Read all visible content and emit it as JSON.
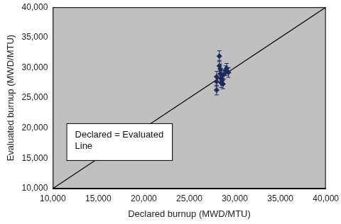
{
  "chart_data": {
    "type": "scatter",
    "x_label": "Declared burnup (MWD/MTU)",
    "y_label": "Evaluated burnup (MWD/MTU)",
    "annotation": "Declared = Evaluated Line",
    "xlim": [
      10000,
      40000
    ],
    "xticks": [
      {
        "value": 10000,
        "label": "10,000"
      },
      {
        "value": 15000,
        "label": "15,000"
      },
      {
        "value": 20000,
        "label": "20,000"
      },
      {
        "value": 25000,
        "label": "25,000"
      },
      {
        "value": 30000,
        "label": "30,000"
      },
      {
        "value": 35000,
        "label": "35,000"
      },
      {
        "value": 40000,
        "label": "40,000"
      }
    ],
    "ylim": [
      10000,
      40000
    ],
    "yticks": [
      {
        "value": 10000,
        "label": "10,000"
      },
      {
        "value": 15000,
        "label": "15,000"
      },
      {
        "value": 20000,
        "label": "20,000"
      },
      {
        "value": 25000,
        "label": "25,000"
      },
      {
        "value": 30000,
        "label": "30,000"
      },
      {
        "value": 35000,
        "label": "35,000"
      },
      {
        "value": 40000,
        "label": "40,000"
      }
    ],
    "grid": false,
    "series": [
      {
        "type": "scatter",
        "color": "#1f2a5e",
        "marker": "diamond",
        "x": [
          28000,
          28000,
          28000,
          28300,
          28300,
          28400,
          28400,
          28500,
          28500,
          28600,
          28600,
          28700,
          28800,
          29000,
          29100,
          29300
        ],
        "values": [
          26300,
          27700,
          28500,
          31900,
          30300,
          29800,
          29000,
          28200,
          27500,
          28700,
          27900,
          27300,
          28900,
          29500,
          29900,
          29200
        ],
        "errors": [
          800,
          800,
          900,
          900,
          900,
          800,
          800,
          800,
          800,
          800,
          800,
          800,
          800,
          800,
          800,
          800
        ]
      },
      {
        "type": "line",
        "color": "#000000",
        "line_style": "solid",
        "x": [
          10000,
          40000
        ],
        "values": [
          10000,
          40000
        ]
      }
    ]
  }
}
